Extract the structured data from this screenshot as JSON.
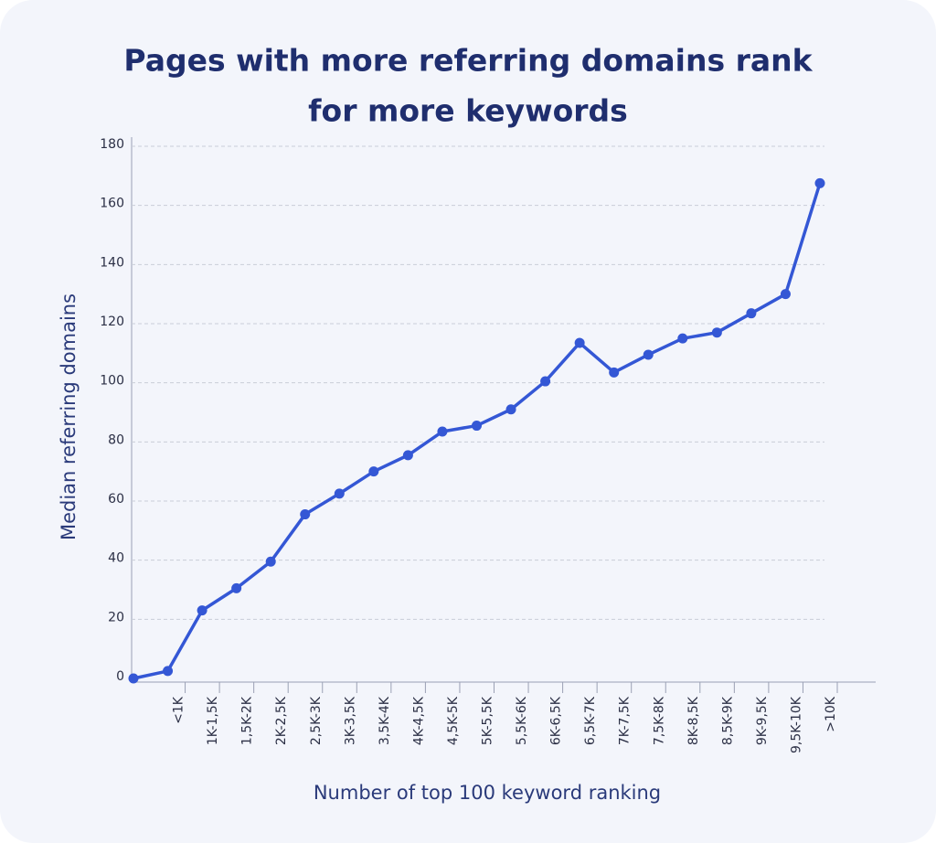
{
  "chart_data": {
    "type": "line",
    "title": [
      "Pages with more referring domains rank",
      "for more keywords"
    ],
    "x_label": "Number of top 100 keyword ranking",
    "y_label": "Median referring domains",
    "categories": [
      null,
      "<1K",
      "1K-1,5K",
      "1,5K-2K",
      "2K-2,5K",
      "2,5K-3K",
      "3K-3,5K",
      "3,5K-4K",
      "4K-4,5K",
      "4,5K-5K",
      "5K-5,5K",
      "5,5K-6K",
      "6K-6,5K",
      "6,5K-7K",
      "7K-7,5K",
      "7,5K-8K",
      "8K-8,5K",
      "8,5K-9K",
      "9K-9,5K",
      "9,5K-10K",
      ">10K"
    ],
    "series": [
      {
        "name": "Median referring domains",
        "color": "#3457d5",
        "values": [
          0,
          2.5,
          23,
          30.5,
          39.5,
          55.5,
          62.5,
          70,
          75.5,
          83.5,
          85.5,
          91,
          100.5,
          113.5,
          103.5,
          109.5,
          115,
          117,
          123.5,
          130,
          167.5
        ]
      }
    ],
    "ylim": [
      0,
      180
    ],
    "yticks": [
      0,
      20,
      40,
      60,
      80,
      100,
      120,
      140,
      160,
      180
    ],
    "grid": true
  }
}
